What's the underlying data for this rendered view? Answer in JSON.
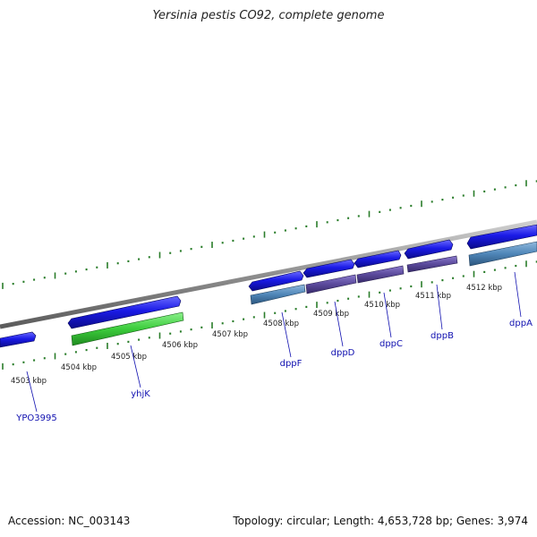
{
  "title": "Yersinia pestis CO92, complete genome",
  "footer": {
    "accession_label": "Accession:",
    "accession": "NC_003143",
    "topology_label": "Topology:",
    "topology": "circular",
    "length_label": "Length:",
    "length": "4,653,728 bp",
    "genes_label": "Genes:",
    "genes": "3,974"
  },
  "colors": {
    "background": "#ffffff",
    "backbone": "#8f8f8f",
    "tick": "#2a7d2a",
    "forward_cds": "#1a1ae6",
    "green_feature": "#3ccc3c",
    "reverse_feature": "#4f86b8",
    "purple_feature": "#5b4a9c",
    "gene_label": "#1010b0",
    "kbp_label": "#222222"
  },
  "kbp_ticks": [
    {
      "kbp": 4503,
      "label": "4503 kbp"
    },
    {
      "kbp": 4504,
      "label": "4504 kbp"
    },
    {
      "kbp": 4505,
      "label": "4505 kbp"
    },
    {
      "kbp": 4506,
      "label": "4506 kbp"
    },
    {
      "kbp": 4507,
      "label": "4507 kbp"
    },
    {
      "kbp": 4508,
      "label": "4508 kbp"
    },
    {
      "kbp": 4509,
      "label": "4509 kbp"
    },
    {
      "kbp": 4510,
      "label": "4510 kbp"
    },
    {
      "kbp": 4511,
      "label": "4511 kbp"
    },
    {
      "kbp": 4512,
      "label": "4512 kbp"
    }
  ],
  "genes": [
    {
      "name": "YPO3995"
    },
    {
      "name": "yhjK"
    },
    {
      "name": "dppF"
    },
    {
      "name": "dppD"
    },
    {
      "name": "dppC"
    },
    {
      "name": "dppB"
    },
    {
      "name": "dppA"
    }
  ]
}
